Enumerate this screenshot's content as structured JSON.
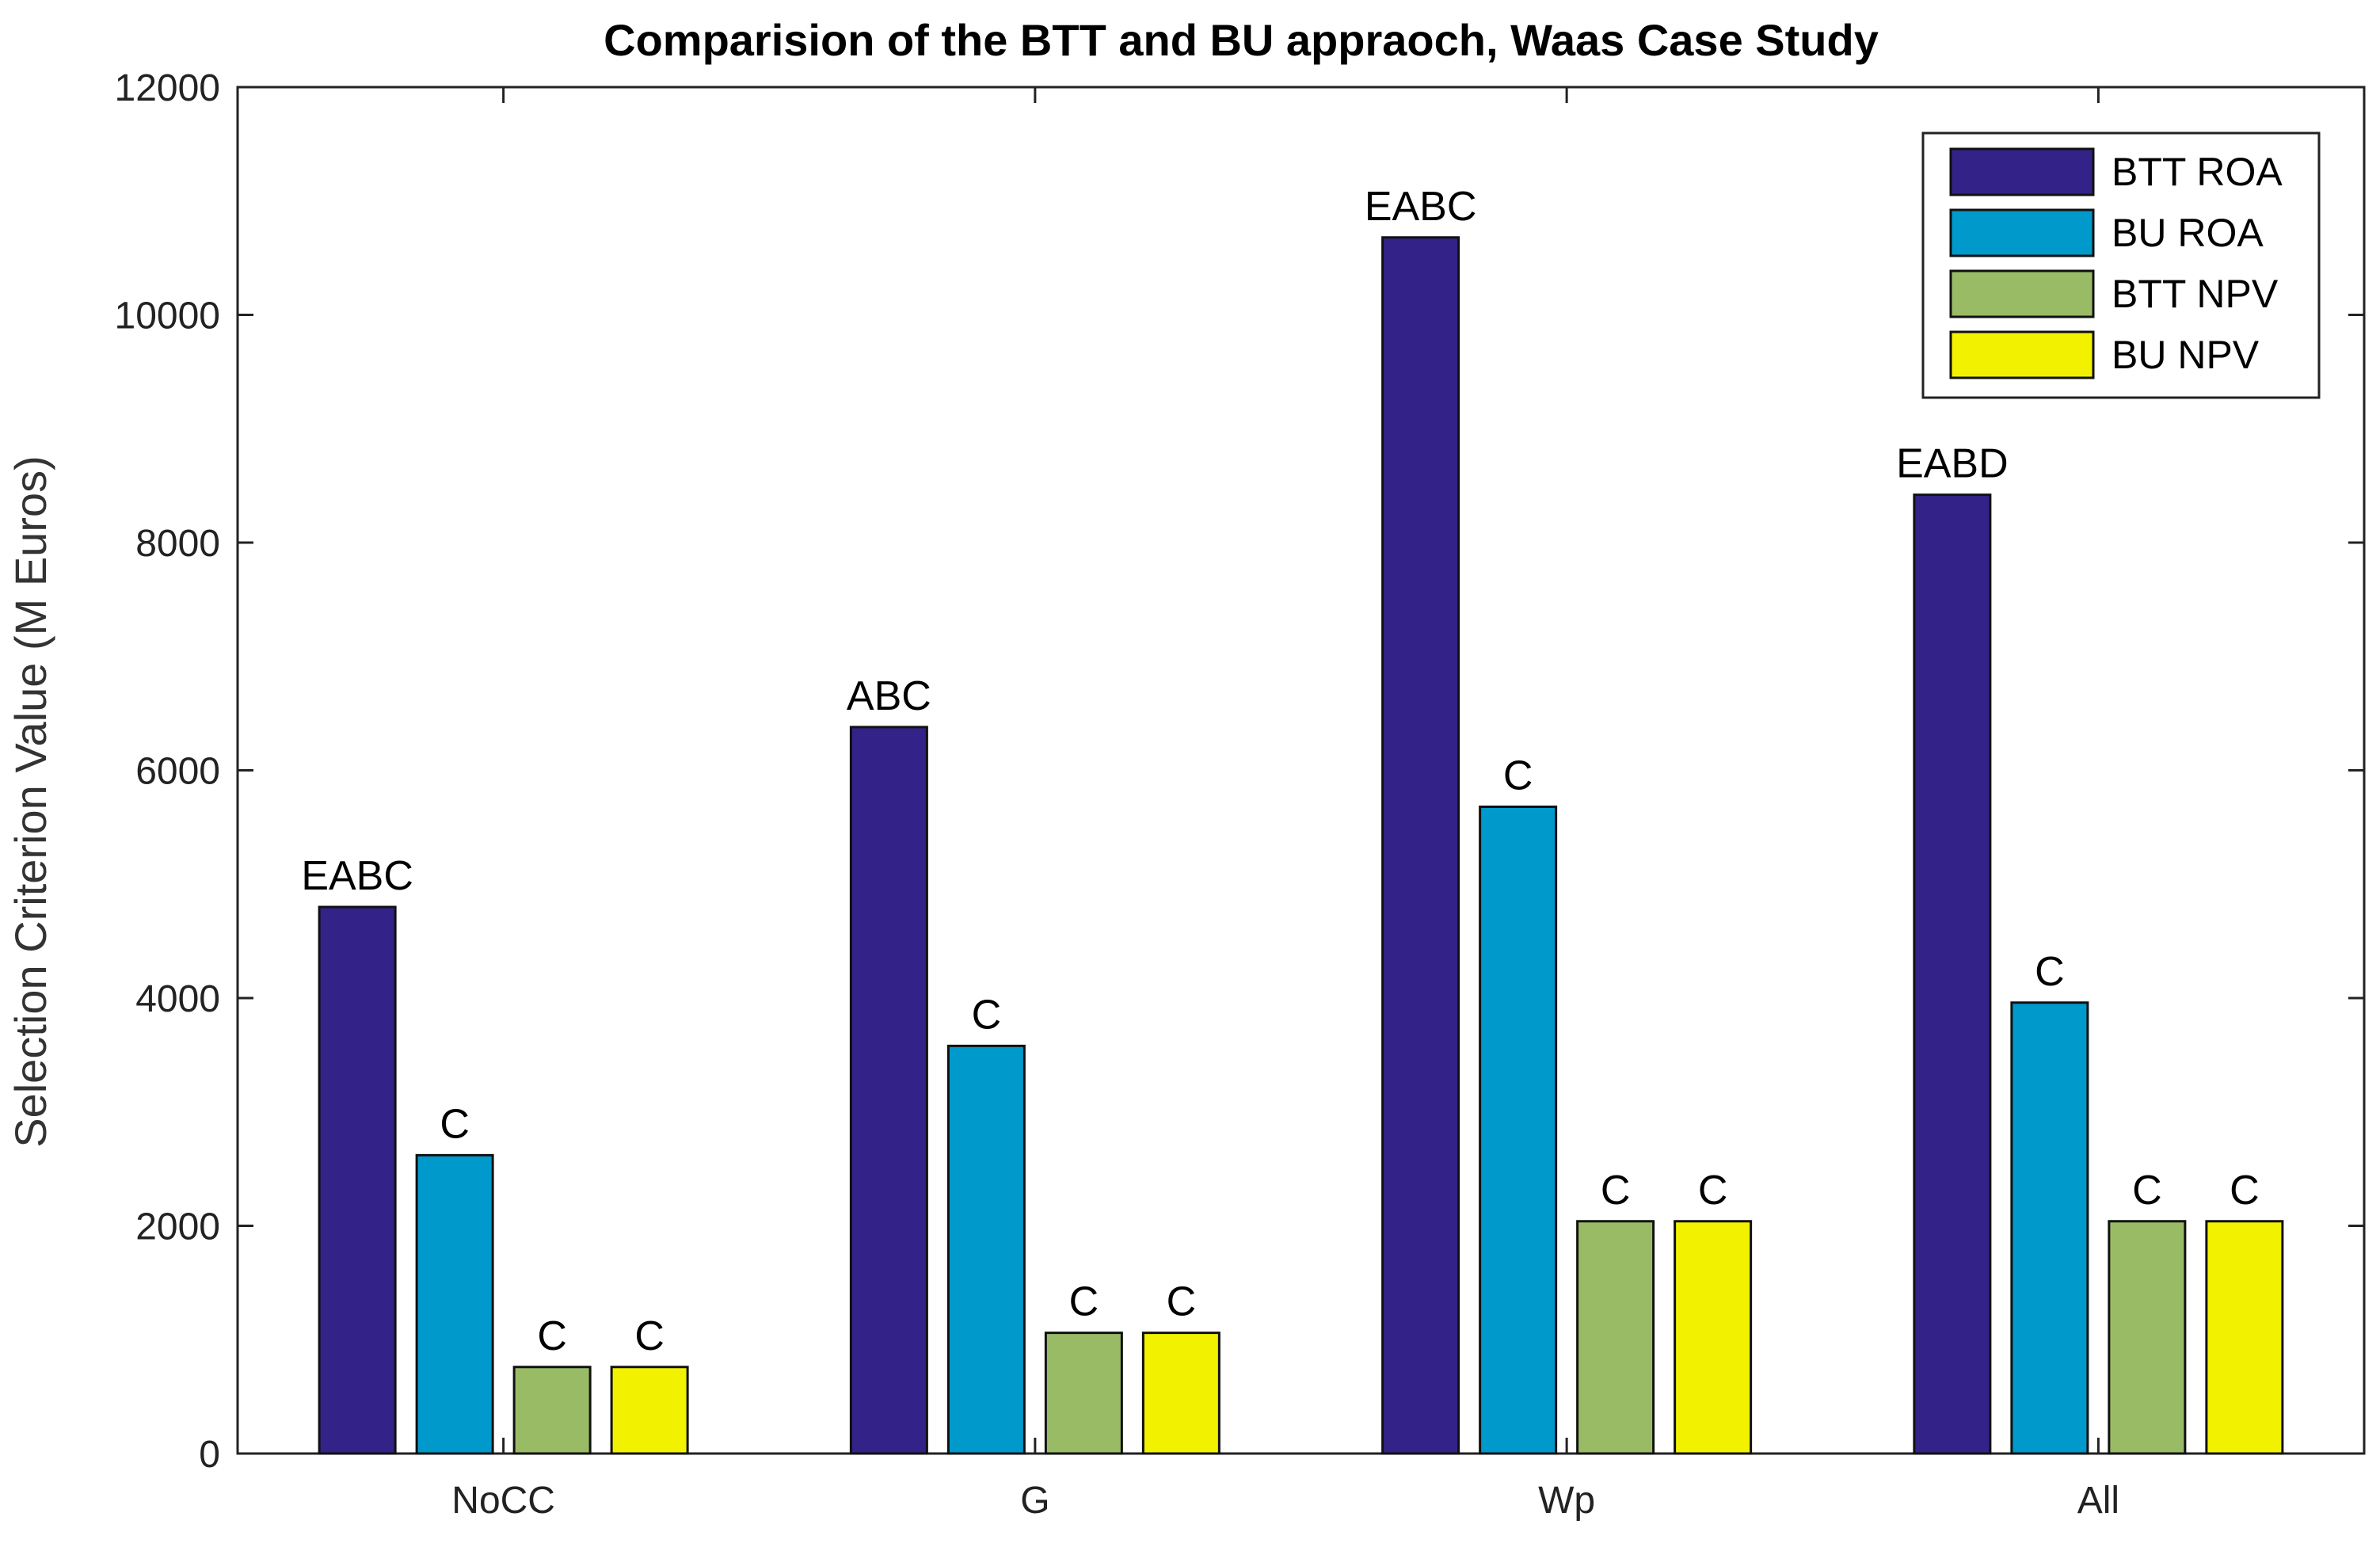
{
  "chart_data": {
    "type": "bar",
    "title": "Comparision of the BTT and BU appraoch, Waas Case Study",
    "xlabel": "",
    "ylabel": "Selection Criterion Value (M Euros)",
    "ylim": [
      0,
      12000
    ],
    "yticks": [
      0,
      2000,
      4000,
      6000,
      8000,
      10000,
      12000
    ],
    "categories": [
      "NoCC",
      "G",
      "Wp",
      "All"
    ],
    "legend_position": "top-right",
    "series": [
      {
        "name": "BTT ROA",
        "color": "#332288",
        "values": [
          4800,
          6380,
          10680,
          8420
        ],
        "labels": [
          "EABC",
          "ABC",
          "EABC",
          "EABD"
        ]
      },
      {
        "name": "BU ROA",
        "color": "#0099CC",
        "values": [
          2620,
          3580,
          5680,
          3960
        ],
        "labels": [
          "C",
          "C",
          "C",
          "C"
        ]
      },
      {
        "name": "BTT NPV",
        "color": "#99BB66",
        "values": [
          760,
          1060,
          2040,
          2040
        ],
        "labels": [
          "C",
          "C",
          "C",
          "C"
        ]
      },
      {
        "name": "BU NPV",
        "color": "#F2F200",
        "values": [
          760,
          1060,
          2040,
          2040
        ],
        "labels": [
          "C",
          "C",
          "C",
          "C"
        ]
      }
    ]
  }
}
